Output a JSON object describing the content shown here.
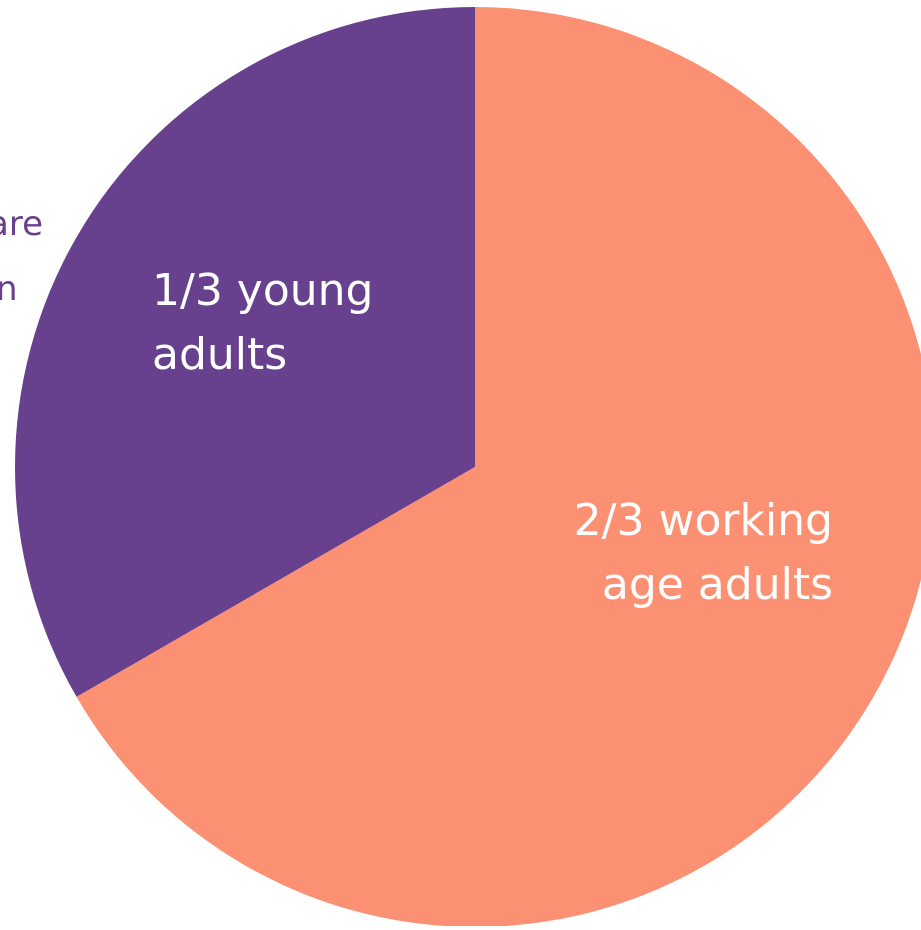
{
  "colors": {
    "background": "#ffffff",
    "young": "#68418e",
    "working": "#fc9072",
    "label": "#ffffff",
    "cut_text": "#6a3f8e"
  },
  "cut_text": {
    "line1": "are",
    "line2": "n"
  },
  "chart_data": {
    "type": "pie",
    "slices": [
      {
        "label": "1/3 young adults",
        "label_lines": [
          "1/3 young",
          "adults"
        ],
        "value": 0.3333,
        "color": "#68418e"
      },
      {
        "label": "2/3 working age adults",
        "label_lines": [
          "2/3 working",
          "age adults"
        ],
        "value": 0.6667,
        "color": "#fc9072"
      }
    ],
    "start": "top",
    "direction": "counter-clockwise from top for first slice"
  }
}
